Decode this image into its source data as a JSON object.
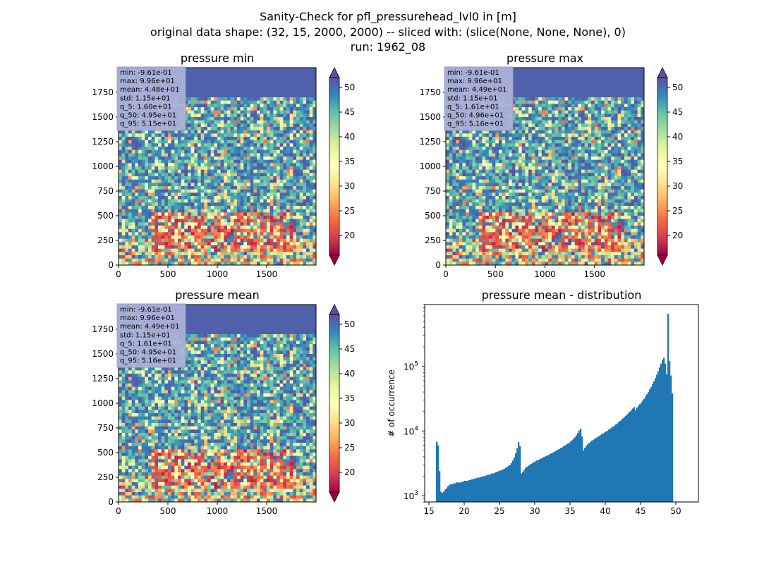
{
  "figure": {
    "title_lines": [
      "Sanity-Check for pfl_pressurehead_lvl0 in [m]",
      "original data shape: (32, 15, 2000, 2000) -- sliced with: (slice(None, None, None), 0)",
      "run: 1962_08"
    ]
  },
  "colorbar": {
    "ticks": [
      20,
      25,
      30,
      35,
      40,
      45,
      50
    ],
    "range": [
      16,
      52
    ],
    "extend": "both",
    "colormap": "Spectral",
    "colormap_colors": [
      "#9e0142",
      "#d53e4f",
      "#f46d43",
      "#fdae61",
      "#fee08b",
      "#ffffbf",
      "#e6f598",
      "#abdda4",
      "#66c2a5",
      "#3288bd",
      "#5e4fa2"
    ]
  },
  "chart_data": [
    {
      "type": "heatmap",
      "title": "pressure min",
      "xlim": [
        0,
        2000
      ],
      "ylim": [
        0,
        2000
      ],
      "xticks": [
        0,
        500,
        1000,
        1500
      ],
      "yticks": [
        0,
        250,
        500,
        750,
        1000,
        1250,
        1500,
        1750
      ],
      "stats": [
        "min: -9.61e-01",
        "max: 9.96e+01",
        "mean: 4.48e+01",
        "std: 1.15e+01",
        "q_5: 1.60e+01",
        "q_50: 4.95e+01",
        "q_95: 5.15e+01"
      ]
    },
    {
      "type": "heatmap",
      "title": "pressure max",
      "xlim": [
        0,
        2000
      ],
      "ylim": [
        0,
        2000
      ],
      "xticks": [
        0,
        500,
        1000,
        1500
      ],
      "yticks": [
        0,
        250,
        500,
        750,
        1000,
        1250,
        1500,
        1750
      ],
      "stats": [
        "min: -9.61e-01",
        "max: 9.96e+01",
        "mean: 4.49e+01",
        "std: 1.15e+01",
        "q_5: 1.61e+01",
        "q_50: 4.96e+01",
        "q_95: 5.16e+01"
      ]
    },
    {
      "type": "heatmap",
      "title": "pressure mean",
      "xlim": [
        0,
        2000
      ],
      "ylim": [
        0,
        2000
      ],
      "xticks": [
        0,
        500,
        1000,
        1500
      ],
      "yticks": [
        0,
        250,
        500,
        750,
        1000,
        1250,
        1500,
        1750
      ],
      "stats": [
        "min: -9.61e-01",
        "max: 9.96e+01",
        "mean: 4.49e+01",
        "std: 1.15e+01",
        "q_5: 1.61e+01",
        "q_50: 4.95e+01",
        "q_95: 5.16e+01"
      ]
    },
    {
      "type": "bar",
      "title": "pressure mean - distribution",
      "ylabel": "# of occurrence",
      "xlabel": "",
      "yscale": "log",
      "xlim": [
        14.4,
        53.2
      ],
      "ylim": [
        800,
        900000
      ],
      "xticks": [
        15,
        20,
        25,
        30,
        35,
        40,
        45,
        50
      ],
      "yticks": [
        {
          "value": 1000,
          "base": "10",
          "exp": "3"
        },
        {
          "value": 10000,
          "base": "10",
          "exp": "4"
        },
        {
          "value": 100000,
          "base": "10",
          "exp": "5"
        }
      ],
      "bar_color": "#1f77b4",
      "bin_start": 16.0,
      "bin_width": 0.2,
      "values": [
        6800,
        6000,
        2400,
        1150,
        1100,
        1150,
        1250,
        1300,
        1400,
        1450,
        1500,
        1500,
        1550,
        1550,
        1600,
        1600,
        1600,
        1600,
        1650,
        1650,
        1700,
        1700,
        1700,
        1750,
        1750,
        1800,
        1800,
        1850,
        1850,
        1900,
        1900,
        1950,
        1950,
        2000,
        2000,
        2050,
        2100,
        2100,
        2150,
        2200,
        2200,
        2250,
        2300,
        2350,
        2400,
        2450,
        2500,
        2550,
        2600,
        2700,
        2800,
        2900,
        3000,
        3200,
        3500,
        3900,
        4500,
        5400,
        6700,
        5800,
        2200,
        2300,
        2500,
        2700,
        2800,
        2900,
        3000,
        3100,
        3200,
        3300,
        3400,
        3500,
        3550,
        3650,
        3750,
        3850,
        3950,
        4050,
        4150,
        4250,
        4350,
        4500,
        4600,
        4700,
        4850,
        5000,
        5150,
        5300,
        5450,
        5600,
        5800,
        6000,
        6200,
        6400,
        6600,
        6900,
        7200,
        7600,
        8000,
        8600,
        9300,
        10200,
        10800,
        8200,
        5000,
        5500,
        5900,
        6200,
        6500,
        6800,
        7100,
        7300,
        7600,
        7800,
        8100,
        8300,
        8600,
        8900,
        9200,
        9500,
        9800,
        10100,
        10500,
        10900,
        11300,
        11700,
        12100,
        12600,
        13100,
        13700,
        14300,
        15000,
        15700,
        16400,
        17200,
        18100,
        19000,
        20000,
        21000,
        22200,
        23500,
        21000,
        23000,
        24500,
        26000,
        27500,
        29500,
        31500,
        34000,
        37000,
        40000,
        44000,
        48000,
        53000,
        59000,
        66000,
        74000,
        84000,
        96000,
        110000,
        125000,
        135000,
        110000,
        75000,
        650000,
        120000,
        72000,
        38000
      ]
    }
  ]
}
